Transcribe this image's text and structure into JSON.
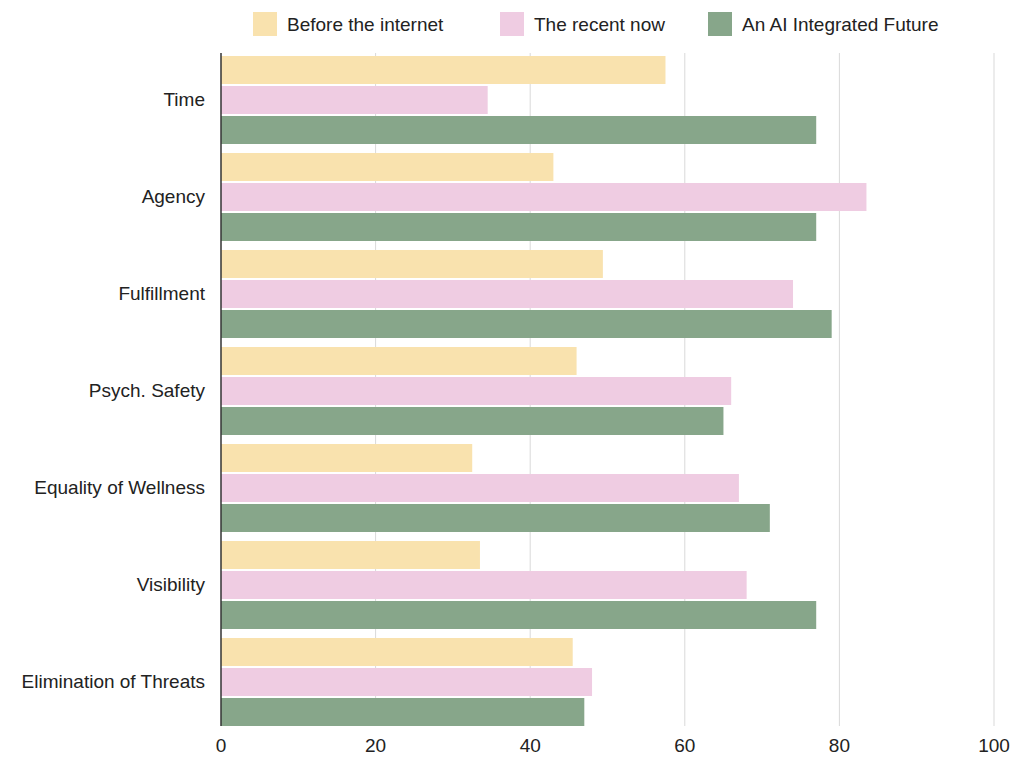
{
  "chart_data": {
    "type": "bar",
    "orientation": "horizontal",
    "categories": [
      "Time",
      "Agency",
      "Fulfillment",
      "Psych. Safety",
      "Equality of Wellness",
      "Visibility",
      "Elimination of Threats"
    ],
    "series": [
      {
        "name": "Before the internet",
        "color": "#f9e2ae",
        "values": [
          57.5,
          43,
          49.4,
          46,
          32.5,
          33.5,
          45.5
        ]
      },
      {
        "name": "The recent now",
        "color": "#efcce2",
        "values": [
          34.5,
          83.5,
          74,
          66,
          67,
          68,
          48
        ]
      },
      {
        "name": "An AI Integrated Future",
        "color": "#87a68a",
        "values": [
          77,
          77,
          79,
          65,
          71,
          77,
          47
        ]
      }
    ],
    "xlim": [
      0,
      100
    ],
    "xticks": [
      0,
      20,
      40,
      60,
      80,
      100
    ],
    "grid": true,
    "legend": "top"
  }
}
